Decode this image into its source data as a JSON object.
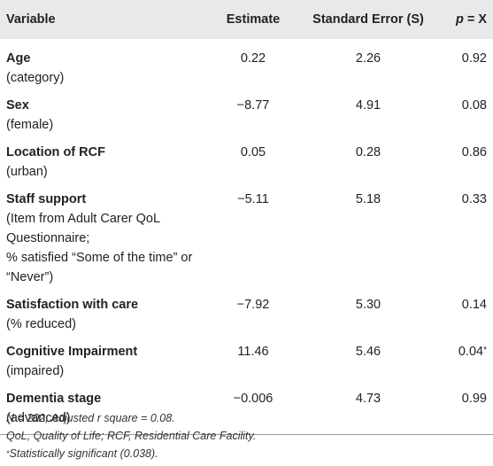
{
  "table": {
    "headers": {
      "variable": "Variable",
      "estimate": "Estimate",
      "std_error": "Standard Error (S)",
      "p_label": "p",
      "p_suffix": " = X"
    },
    "rows": [
      {
        "name": "Age",
        "sub": "(category)",
        "estimate": "0.22",
        "se": "2.26",
        "p": "0.92",
        "flag": ""
      },
      {
        "name": "Sex",
        "sub": "(female)",
        "estimate": "−8.77",
        "se": "4.91",
        "p": "0.08",
        "flag": ""
      },
      {
        "name": "Location of RCF",
        "sub": "(urban)",
        "estimate": "0.05",
        "se": "0.28",
        "p": "0.86",
        "flag": ""
      },
      {
        "name": "Staff support",
        "sub_lines": [
          "(Item from Adult Carer QoL",
          "Questionnaire;",
          "% satisfied “Some of the time” or",
          "“Never”)"
        ],
        "estimate": "−5.11",
        "se": "5.18",
        "p": "0.33",
        "flag": ""
      },
      {
        "name": "Satisfaction with care",
        "sub": "(% reduced)",
        "estimate": "−7.92",
        "se": "5.30",
        "p": "0.14",
        "flag": ""
      },
      {
        "name": "Cognitive Impairment",
        "sub": "(impaired)",
        "estimate": "11.46",
        "se": "5.46",
        "p": "0.04",
        "flag": "*"
      },
      {
        "name": "Dementia stage",
        "sub": "(advanced)",
        "estimate": "−0.006",
        "se": "4.73",
        "p": "0.99",
        "flag": ""
      }
    ]
  },
  "footnotes": {
    "line1": "N = 202; Adjusted r square = 0.08.",
    "line2": "QoL, Quality of Life; RCF, Residential Care Facility.",
    "line3_mark": "*",
    "line3": "Statistically significant (0.038)."
  }
}
